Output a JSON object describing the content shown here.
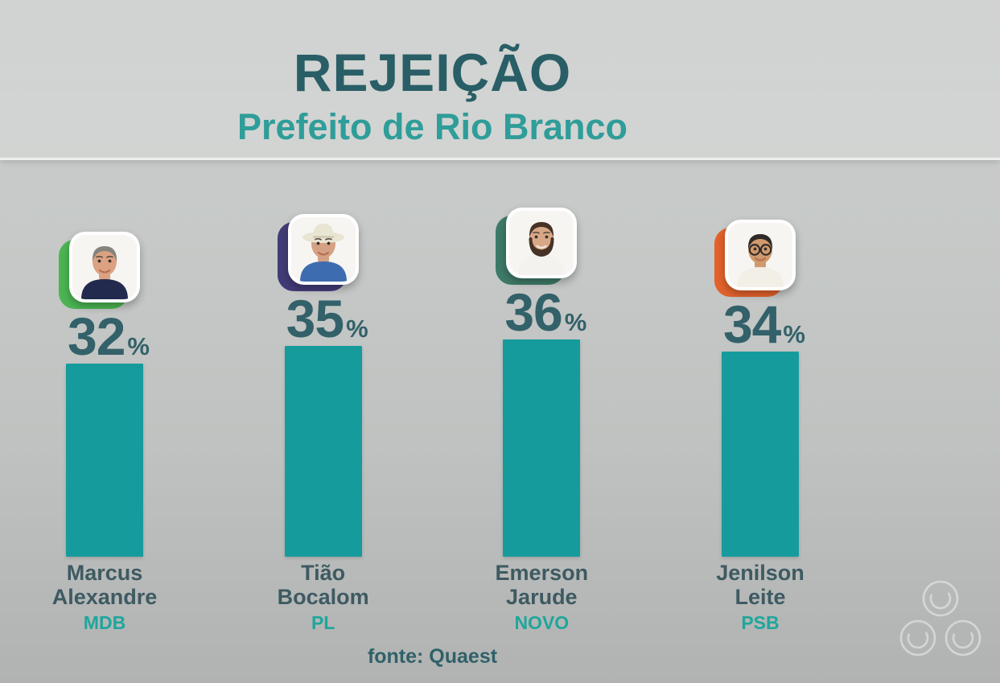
{
  "header": {
    "title": "REJEIÇÃO",
    "subtitle": "Prefeito de Rio Branco",
    "title_color": "#295e66",
    "subtitle_color": "#2f9d99"
  },
  "chart_data": {
    "type": "bar",
    "title": "REJEIÇÃO",
    "subtitle": "Prefeito de Rio Branco",
    "source": "fonte: Quaest",
    "unit": "%",
    "orientation": "vertical",
    "grid": false,
    "legend": false,
    "ylim": [
      0,
      40
    ],
    "categories": [
      "Marcus Alexandre",
      "Tião Bocalom",
      "Emerson Jarude",
      "Jenilson Leite"
    ],
    "parties": [
      "MDB",
      "PL",
      "NOVO",
      "PSB"
    ],
    "series": [
      {
        "name": "Rejeição (%)",
        "values": [
          32,
          35,
          36,
          34
        ]
      }
    ],
    "bar_color": "#169b9d",
    "value_labels": [
      "32%",
      "35%",
      "36%",
      "34%"
    ]
  },
  "candidates": [
    {
      "name_line1": "Marcus",
      "name_line2": "Alexandre",
      "party": "MDB",
      "value": 32,
      "pct": "%",
      "accent": "#4cb553",
      "avatar": {
        "skin": "#dca183",
        "hair": "#84837c",
        "shirt": "#222a4d",
        "hat": false,
        "hat_color": "",
        "beard": false,
        "glasses": false
      }
    },
    {
      "name_line1": "Tião",
      "name_line2": "Bocalom",
      "party": "PL",
      "value": 35,
      "pct": "%",
      "accent": "#413c77",
      "avatar": {
        "skin": "#d5a184",
        "hair": "#9b9890",
        "shirt": "#3e6cb0",
        "hat": true,
        "hat_color": "#e9e5d3",
        "beard": false,
        "glasses": false
      }
    },
    {
      "name_line1": "Emerson",
      "name_line2": "Jarude",
      "party": "NOVO",
      "value": 36,
      "pct": "%",
      "accent": "#3e7a68",
      "avatar": {
        "skin": "#d8a886",
        "hair": "#463226",
        "shirt": "#f4f2ee",
        "hat": false,
        "hat_color": "",
        "beard": true,
        "glasses": false
      }
    },
    {
      "name_line1": "Jenilson",
      "name_line2": "Leite",
      "party": "PSB",
      "value": 34,
      "pct": "%",
      "accent": "#e2622b",
      "avatar": {
        "skin": "#d09a6c",
        "hair": "#2e2a28",
        "shirt": "#f2efe6",
        "hat": false,
        "hat_color": "",
        "beard": false,
        "glasses": true
      }
    }
  ],
  "footer": {
    "source": "fonte: Quaest"
  },
  "watermark": {
    "icon": "triple-spiral-logo",
    "color": "#eef1ee"
  },
  "colors": {
    "bar": "#169b9d",
    "value": "#33616a",
    "name": "#3e5a62",
    "party": "#1fa69c"
  }
}
